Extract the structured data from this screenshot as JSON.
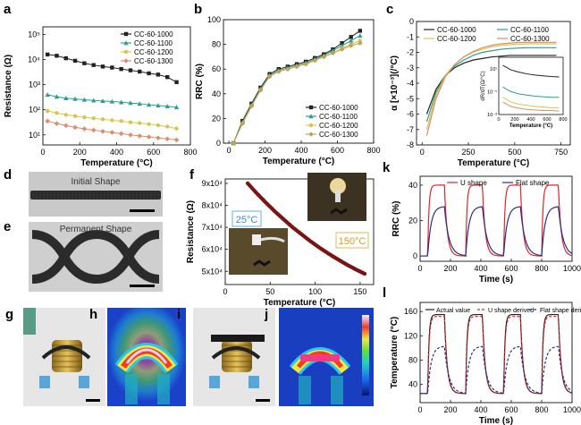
{
  "panel_labels": {
    "a": "a",
    "b": "b",
    "c": "c",
    "d": "d",
    "e": "e",
    "f": "f",
    "g": "g",
    "h": "h",
    "i": "i",
    "j": "j",
    "k": "k",
    "l": "l"
  },
  "photo_labels": {
    "d": "Initial Shape",
    "e": "Permanent Shape",
    "f_left": "25°C",
    "f_right": "150°C"
  },
  "colors": {
    "black": "#222222",
    "teal": "#2b9e94",
    "yellow": "#d8c64a",
    "salmon": "#e08b6a",
    "red": "#e0262b",
    "blue": "#2e2e8a",
    "dark_red": "#7a1414",
    "tan": "#c2a255"
  },
  "chart_data": [
    {
      "id": "a",
      "type": "line",
      "xlabel": "Temperature (°C)",
      "ylabel": "Resistance (Ω)",
      "xlim": [
        0,
        800
      ],
      "ylim": [
        0.6,
        5.3
      ],
      "yscale": "log",
      "xticks": [
        "0",
        "200",
        "400",
        "600",
        "800"
      ],
      "yticks": [
        "10¹",
        "10²",
        "10³",
        "10⁴",
        "10⁵"
      ],
      "legend": "top-right",
      "x": [
        25,
        75,
        125,
        175,
        225,
        275,
        325,
        375,
        425,
        475,
        525,
        575,
        625,
        675,
        725
      ],
      "series": [
        {
          "name": "CC-60-1000",
          "color": "#222222",
          "values": [
            4.2,
            4.15,
            4.05,
            3.95,
            3.85,
            3.78,
            3.72,
            3.68,
            3.62,
            3.57,
            3.52,
            3.45,
            3.4,
            3.3,
            3.1
          ]
        },
        {
          "name": "CC-60-1100",
          "color": "#2b9e94",
          "values": [
            2.6,
            2.52,
            2.46,
            2.43,
            2.4,
            2.37,
            2.35,
            2.33,
            2.3,
            2.27,
            2.24,
            2.2,
            2.17,
            2.14,
            2.1
          ]
        },
        {
          "name": "CC-60-1200",
          "color": "#d8c64a",
          "values": [
            1.95,
            1.87,
            1.8,
            1.75,
            1.7,
            1.66,
            1.62,
            1.58,
            1.55,
            1.5,
            1.47,
            1.43,
            1.38,
            1.33,
            1.25
          ]
        },
        {
          "name": "CC-60-1300",
          "color": "#e08b6a",
          "values": [
            1.55,
            1.45,
            1.37,
            1.3,
            1.24,
            1.19,
            1.14,
            1.1,
            1.05,
            1.0,
            0.96,
            0.92,
            0.88,
            0.84,
            0.8
          ]
        }
      ]
    },
    {
      "id": "b",
      "type": "line",
      "xlabel": "Temperature (°C)",
      "ylabel": "RRC (%)",
      "xlim": [
        -30,
        800
      ],
      "ylim": [
        0,
        100
      ],
      "xticks": [
        "0",
        "200",
        "400",
        "600",
        "800"
      ],
      "yticks": [
        "0",
        "20",
        "40",
        "60",
        "80",
        "100"
      ],
      "legend": "bottom-right",
      "x": [
        25,
        75,
        125,
        175,
        225,
        275,
        325,
        375,
        425,
        475,
        525,
        575,
        625,
        675,
        725
      ],
      "series": [
        {
          "name": "CC-60-1000",
          "color": "#222222",
          "values": [
            0,
            18,
            32,
            45,
            56,
            60,
            62,
            64,
            66,
            69,
            72,
            76,
            81,
            86,
            91
          ]
        },
        {
          "name": "CC-60-1100",
          "color": "#2b9e94",
          "values": [
            0,
            17,
            31,
            44,
            55,
            59,
            61,
            63,
            65,
            68,
            71,
            75,
            79,
            83,
            87
          ]
        },
        {
          "name": "CC-60-1200",
          "color": "#d8c64a",
          "values": [
            0,
            16,
            30,
            43,
            54,
            58,
            60,
            62,
            64,
            67,
            70,
            73,
            77,
            80,
            83
          ]
        },
        {
          "name": "CC-60-1300",
          "color": "#c2a255",
          "values": [
            0,
            16,
            30,
            43,
            54,
            58,
            60,
            62,
            64,
            67,
            70,
            73,
            76,
            79,
            81
          ]
        }
      ]
    },
    {
      "id": "c",
      "type": "line",
      "xlabel": "Temperature (°C)",
      "ylabel": "α [×10⁻³](/°C)",
      "xlim": [
        -30,
        800
      ],
      "ylim": [
        -8,
        0
      ],
      "xticks": [
        "0",
        "250",
        "500",
        "750"
      ],
      "yticks": [
        "-8",
        "-7",
        "-6",
        "-5",
        "-4",
        "-3",
        "-2",
        "-1",
        "0"
      ],
      "legend": "top",
      "x": [
        25,
        75,
        125,
        175,
        225,
        275,
        325,
        375,
        425,
        475,
        525,
        575,
        625,
        675,
        725
      ],
      "series": [
        {
          "name": "CC-60-1000",
          "color": "#222222",
          "values": [
            -6.0,
            -4.4,
            -3.5,
            -3.0,
            -2.7,
            -2.5,
            -2.4,
            -2.3,
            -2.25,
            -2.2,
            -2.2,
            -2.2,
            -2.2,
            -2.2,
            -2.2
          ]
        },
        {
          "name": "CC-60-1100",
          "color": "#2b9e94",
          "values": [
            -6.5,
            -4.6,
            -3.5,
            -2.9,
            -2.5,
            -2.2,
            -2.0,
            -1.9,
            -1.8,
            -1.75,
            -1.72,
            -1.7,
            -1.7,
            -1.7,
            -1.7
          ]
        },
        {
          "name": "CC-60-1200",
          "color": "#d8c64a",
          "values": [
            -7.0,
            -4.8,
            -3.5,
            -2.8,
            -2.3,
            -2.0,
            -1.8,
            -1.65,
            -1.55,
            -1.5,
            -1.47,
            -1.45,
            -1.45,
            -1.45,
            -1.45
          ]
        },
        {
          "name": "CC-60-1300",
          "color": "#e08b6a",
          "values": [
            -7.4,
            -5.0,
            -3.6,
            -2.8,
            -2.3,
            -1.95,
            -1.7,
            -1.55,
            -1.45,
            -1.4,
            -1.36,
            -1.35,
            -1.35,
            -1.35,
            -1.35
          ]
        }
      ],
      "inset": {
        "xlabel": "Temperature (°C)",
        "ylabel": "dR/dT(Ω/°C)",
        "xlim": [
          0,
          800
        ],
        "ylim": [
          -3,
          2
        ],
        "yscale": "log",
        "xticks": [
          "0",
          "200",
          "400",
          "600",
          "800"
        ],
        "yticks": [
          "10⁻³",
          "10⁻¹",
          "10¹"
        ],
        "x": [
          50,
          150,
          250,
          350,
          450,
          550,
          650,
          750
        ],
        "series": [
          {
            "color": "#222222",
            "values": [
              1.3,
              0.9,
              0.7,
              0.55,
              0.45,
              0.38,
              0.32,
              0.28
            ]
          },
          {
            "color": "#2b9e94",
            "values": [
              -0.6,
              -1.0,
              -1.2,
              -1.3,
              -1.4,
              -1.45,
              -1.5,
              -1.5
            ]
          },
          {
            "color": "#d8c64a",
            "values": [
              -1.5,
              -1.9,
              -2.1,
              -2.2,
              -2.3,
              -2.35,
              -2.4,
              -2.4
            ]
          },
          {
            "color": "#e08b6a",
            "values": [
              -1.9,
              -2.3,
              -2.45,
              -2.55,
              -2.6,
              -2.65,
              -2.65,
              -2.7
            ]
          }
        ]
      }
    },
    {
      "id": "f",
      "type": "scatter",
      "xlabel": "Temperature (°C)",
      "ylabel": "Resistance (Ω)",
      "xlim": [
        0,
        165
      ],
      "ylim": [
        44000,
        92000
      ],
      "xticks": [
        "0",
        "50",
        "100",
        "150"
      ],
      "yticks": [
        "5x10⁴",
        "6x10⁴",
        "7x10⁴",
        "8x10⁴",
        "9x10⁴"
      ],
      "x": [
        25,
        35,
        45,
        55,
        65,
        75,
        85,
        95,
        105,
        115,
        125,
        135,
        145,
        155
      ],
      "series": [
        {
          "name": "",
          "color": "#7a1414",
          "values": [
            90000,
            85500,
            81300,
            77300,
            73600,
            70000,
            66800,
            63600,
            60700,
            58000,
            55500,
            53100,
            50900,
            48900
          ]
        }
      ]
    },
    {
      "id": "k",
      "type": "line",
      "xlabel": "Time (s)",
      "ylabel": "RRC (%)",
      "xlim": [
        0,
        1000
      ],
      "ylim": [
        -3,
        45
      ],
      "xticks": [
        "0",
        "200",
        "400",
        "600",
        "800",
        "1000"
      ],
      "yticks": [
        "0",
        "20",
        "40"
      ],
      "legend": "top",
      "series": [
        {
          "name": "U shape",
          "color": "#e0262b",
          "peak": 40,
          "rise": 8,
          "decay": 18
        },
        {
          "name": "Flat shape",
          "color": "#2e2e8a",
          "peak": 28,
          "rise": 22,
          "decay": 30
        }
      ],
      "on_times": [
        50,
        300,
        550,
        800
      ],
      "on_duration": 110
    },
    {
      "id": "l",
      "type": "line",
      "xlabel": "Time (s)",
      "ylabel": "Temperature (°C)",
      "xlim": [
        0,
        1000
      ],
      "ylim": [
        10,
        175
      ],
      "xticks": [
        "0",
        "200",
        "400",
        "600",
        "800",
        "1000"
      ],
      "yticks": [
        "40",
        "80",
        "120",
        "160"
      ],
      "legend": "top",
      "series": [
        {
          "name": "Actual value",
          "color": "#222222",
          "peak": 155,
          "rise": 8,
          "decay": 18
        },
        {
          "name": "U shape derived",
          "color": "#e0262b",
          "peak": 152,
          "rise": 9,
          "decay": 19
        },
        {
          "name": "Flat shape derived",
          "color": "#2e2e8a",
          "peak": 103,
          "rise": 22,
          "decay": 30
        }
      ],
      "on_times": [
        50,
        300,
        550,
        800
      ],
      "on_duration": 110
    }
  ]
}
